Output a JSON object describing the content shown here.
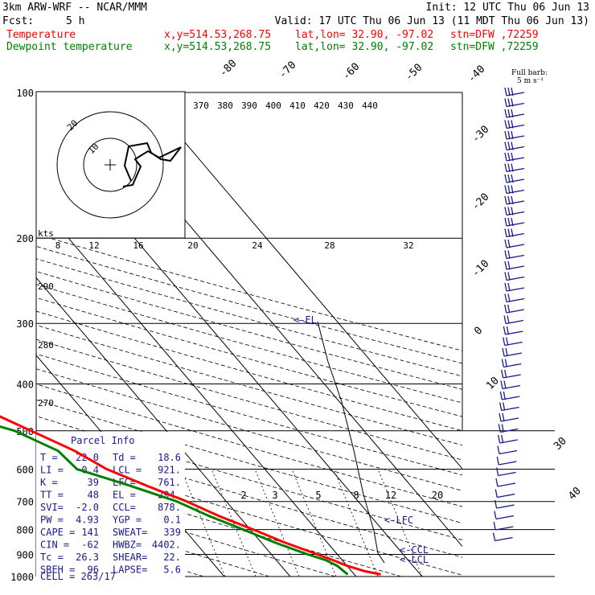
{
  "header": {
    "model": "3km ARW-WRF -- NCAR/MMM",
    "init": "Init: 12 UTC Thu 06 Jun 13",
    "fcst_label": "Fcst:",
    "fcst_value": "5 h",
    "valid": "Valid: 17 UTC Thu 06 Jun 13 (11 MDT Thu 06 Jun 13)",
    "temp_label": "Temperature",
    "dew_label": "Dewpoint temperature",
    "xy": "x,y=514.53,268.75",
    "latlon": "lat,lon= 32.90, -97.02",
    "stn": "stn=DFW ,72259"
  },
  "colors": {
    "temperature": "#ff0000",
    "dewpoint": "#008000",
    "wind": "#1a1a8c",
    "parcel": "#000000"
  },
  "wind_legend": {
    "line1": "Full barb:",
    "line2": "5 m s⁻¹"
  },
  "hodograph": {
    "units": "kts",
    "rings": [
      "10",
      "20"
    ]
  },
  "theta_e_labels": [
    "370",
    "380",
    "390",
    "400",
    "410",
    "420",
    "430",
    "440"
  ],
  "mixing_ratio_labels": [
    "2",
    "3",
    "5",
    "8",
    "12",
    "20"
  ],
  "wind_speed_labels": [
    "8",
    "12",
    "16",
    "20",
    "24",
    "28",
    "32"
  ],
  "theta_labels": [
    "290",
    "280",
    "270"
  ],
  "temp_labels": [
    "-80",
    "-70",
    "-60",
    "-50",
    "-40",
    "-30",
    "-20",
    "-10",
    "0",
    "10",
    "30",
    "40"
  ],
  "level_marks": {
    "el": "<-EL",
    "lfc": "<-LFC",
    "ccl": "<-CCL",
    "lcl": "<-LCL"
  },
  "parcel_info": {
    "title": "Parcel Info",
    "rows": [
      [
        "T  =",
        "22.0",
        "Td =",
        "18.6"
      ],
      [
        "LI =",
        "-0.4",
        "LCL =",
        "921."
      ],
      [
        "K  =",
        "39",
        "LFC=",
        "761."
      ],
      [
        "TT =",
        "48",
        "EL =",
        "294."
      ],
      [
        "SVI=",
        "-2.0",
        "CCL=",
        "878."
      ],
      [
        "PW =",
        "4.93",
        "YGP =",
        "0.1"
      ],
      [
        "CAPE =",
        "141",
        "SWEAT=",
        "339"
      ],
      [
        "CIN =",
        "-62",
        "HWBZ=",
        "4402."
      ],
      [
        "Tc =",
        "26.3",
        "SHEAR=",
        "22."
      ],
      [
        "SREH =",
        "96",
        "LAPSE=",
        "5.6"
      ]
    ],
    "cell": "CELL = 263/17"
  },
  "chart_data": {
    "type": "line",
    "xlabel": "",
    "ylabel": "",
    "y_axis": "pressure (hPa), log scale",
    "pressure_levels": [
      100,
      200,
      300,
      400,
      500,
      600,
      700,
      800,
      900,
      1000
    ],
    "ylim": [
      1000,
      100
    ],
    "series": [
      {
        "name": "Temperature",
        "points": [
          {
            "p": 990,
            "t": 24.0
          },
          {
            "p": 975,
            "t": 22.0
          },
          {
            "p": 950,
            "t": 20.0
          },
          {
            "p": 925,
            "t": 18.6
          },
          {
            "p": 900,
            "t": 17.0
          },
          {
            "p": 850,
            "t": 13.5
          },
          {
            "p": 800,
            "t": 10.5
          },
          {
            "p": 750,
            "t": 7.0
          },
          {
            "p": 700,
            "t": 4.0
          },
          {
            "p": 650,
            "t": 0.0
          },
          {
            "p": 600,
            "t": -4.0
          },
          {
            "p": 550,
            "t": -6.5
          },
          {
            "p": 500,
            "t": -10.5
          },
          {
            "p": 450,
            "t": -15.0
          },
          {
            "p": 400,
            "t": -20.0
          },
          {
            "p": 350,
            "t": -27.0
          },
          {
            "p": 300,
            "t": -36.0
          },
          {
            "p": 250,
            "t": -47.0
          },
          {
            "p": 200,
            "t": -58.0
          },
          {
            "p": 170,
            "t": -64.0
          },
          {
            "p": 150,
            "t": -65.0
          },
          {
            "p": 130,
            "t": -66.0
          },
          {
            "p": 115,
            "t": -67.0
          },
          {
            "p": 100,
            "t": -69.0
          }
        ]
      },
      {
        "name": "Dewpoint temperature",
        "points": [
          {
            "p": 990,
            "t": 19.0
          },
          {
            "p": 950,
            "t": 18.5
          },
          {
            "p": 925,
            "t": 17.5
          },
          {
            "p": 900,
            "t": 15.5
          },
          {
            "p": 850,
            "t": 12.0
          },
          {
            "p": 800,
            "t": 9.0
          },
          {
            "p": 750,
            "t": 5.5
          },
          {
            "p": 700,
            "t": 2.5
          },
          {
            "p": 650,
            "t": -2.5
          },
          {
            "p": 600,
            "t": -8.5
          },
          {
            "p": 550,
            "t": -9.0
          },
          {
            "p": 500,
            "t": -13.0
          },
          {
            "p": 450,
            "t": -22.0
          },
          {
            "p": 400,
            "t": -27.0
          },
          {
            "p": 350,
            "t": -34.0
          },
          {
            "p": 300,
            "t": -40.0
          },
          {
            "p": 250,
            "t": -51.0
          },
          {
            "p": 200,
            "t": -63.0
          },
          {
            "p": 170,
            "t": -73.0
          },
          {
            "p": 150,
            "t": -80.0
          },
          {
            "p": 130,
            "t": -85.0
          },
          {
            "p": 115,
            "t": -88.0
          },
          {
            "p": 100,
            "t": -90.0
          }
        ]
      }
    ],
    "grid": true
  }
}
